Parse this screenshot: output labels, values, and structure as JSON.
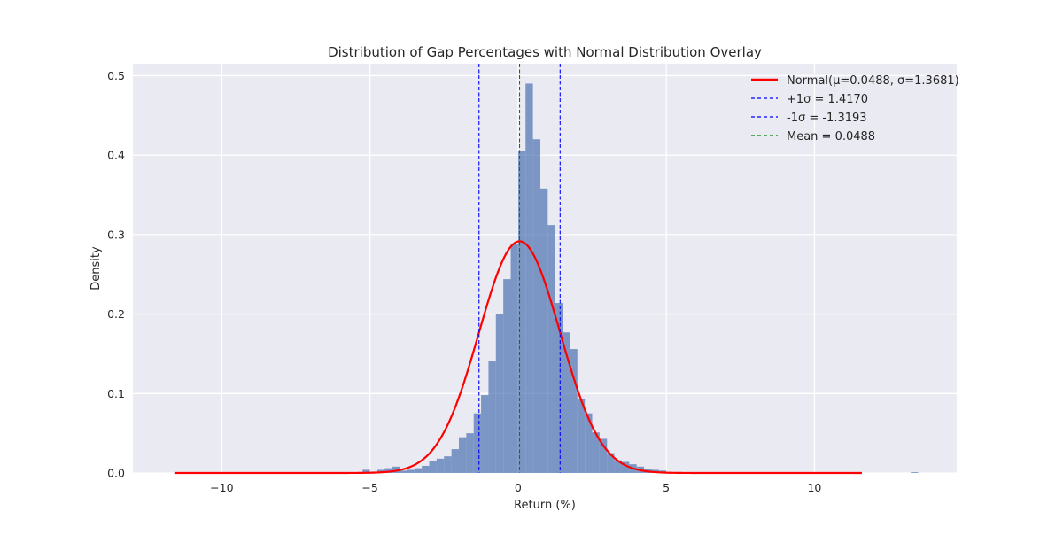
{
  "chart_data": {
    "type": "bar",
    "title": "Distribution of Gap Percentages with Normal Distribution Overlay",
    "xlabel": "Return (%)",
    "ylabel": "Density",
    "xlim": [
      -13.0,
      14.8
    ],
    "ylim": [
      0.0,
      0.515
    ],
    "xticks": [
      -10,
      -5,
      0,
      5,
      10
    ],
    "xtick_labels": [
      "−10",
      "−5",
      "0",
      "5",
      "10"
    ],
    "yticks": [
      0.0,
      0.1,
      0.2,
      0.3,
      0.4,
      0.5
    ],
    "ytick_labels": [
      "0.0",
      "0.1",
      "0.2",
      "0.3",
      "0.4",
      "0.5"
    ],
    "grid": true,
    "legend_position": "top-right",
    "colors": {
      "background": "#eaeaf2",
      "grid": "#ffffff",
      "bars": "#4c72b0",
      "normal_curve": "#ff0000",
      "sigma_lines": "#0000ff",
      "mean_line": "#008000",
      "text": "#262626"
    },
    "histogram": {
      "name": "Gap percentage",
      "bin_width": 0.25,
      "bins": [
        {
          "x0": -8.25,
          "x1": -8.0,
          "density": 0.001
        },
        {
          "x0": -6.75,
          "x1": -6.5,
          "density": 0.001
        },
        {
          "x0": -6.0,
          "x1": -5.75,
          "density": 0.001
        },
        {
          "x0": -5.5,
          "x1": -5.25,
          "density": 0.001
        },
        {
          "x0": -5.25,
          "x1": -5.0,
          "density": 0.004
        },
        {
          "x0": -5.0,
          "x1": -4.75,
          "density": 0.001
        },
        {
          "x0": -4.75,
          "x1": -4.5,
          "density": 0.004
        },
        {
          "x0": -4.5,
          "x1": -4.25,
          "density": 0.006
        },
        {
          "x0": -4.25,
          "x1": -4.0,
          "density": 0.008
        },
        {
          "x0": -4.0,
          "x1": -3.75,
          "density": 0.003
        },
        {
          "x0": -3.75,
          "x1": -3.5,
          "density": 0.004
        },
        {
          "x0": -3.5,
          "x1": -3.25,
          "density": 0.006
        },
        {
          "x0": -3.25,
          "x1": -3.0,
          "density": 0.009
        },
        {
          "x0": -3.0,
          "x1": -2.75,
          "density": 0.015
        },
        {
          "x0": -2.75,
          "x1": -2.5,
          "density": 0.018
        },
        {
          "x0": -2.5,
          "x1": -2.25,
          "density": 0.021
        },
        {
          "x0": -2.25,
          "x1": -2.0,
          "density": 0.03
        },
        {
          "x0": -2.0,
          "x1": -1.75,
          "density": 0.045
        },
        {
          "x0": -1.75,
          "x1": -1.5,
          "density": 0.05
        },
        {
          "x0": -1.5,
          "x1": -1.25,
          "density": 0.075
        },
        {
          "x0": -1.25,
          "x1": -1.0,
          "density": 0.098
        },
        {
          "x0": -1.0,
          "x1": -0.75,
          "density": 0.141
        },
        {
          "x0": -0.75,
          "x1": -0.5,
          "density": 0.2
        },
        {
          "x0": -0.5,
          "x1": -0.25,
          "density": 0.244
        },
        {
          "x0": -0.25,
          "x1": 0.0,
          "density": 0.288
        },
        {
          "x0": 0.0,
          "x1": 0.25,
          "density": 0.405
        },
        {
          "x0": 0.25,
          "x1": 0.5,
          "density": 0.49
        },
        {
          "x0": 0.5,
          "x1": 0.75,
          "density": 0.42
        },
        {
          "x0": 0.75,
          "x1": 1.0,
          "density": 0.358
        },
        {
          "x0": 1.0,
          "x1": 1.25,
          "density": 0.312
        },
        {
          "x0": 1.25,
          "x1": 1.5,
          "density": 0.214
        },
        {
          "x0": 1.5,
          "x1": 1.75,
          "density": 0.177
        },
        {
          "x0": 1.75,
          "x1": 2.0,
          "density": 0.156
        },
        {
          "x0": 2.0,
          "x1": 2.25,
          "density": 0.093
        },
        {
          "x0": 2.25,
          "x1": 2.5,
          "density": 0.075
        },
        {
          "x0": 2.5,
          "x1": 2.75,
          "density": 0.051
        },
        {
          "x0": 2.75,
          "x1": 3.0,
          "density": 0.043
        },
        {
          "x0": 3.0,
          "x1": 3.25,
          "density": 0.025
        },
        {
          "x0": 3.25,
          "x1": 3.5,
          "density": 0.016
        },
        {
          "x0": 3.5,
          "x1": 3.75,
          "density": 0.014
        },
        {
          "x0": 3.75,
          "x1": 4.0,
          "density": 0.011
        },
        {
          "x0": 4.0,
          "x1": 4.25,
          "density": 0.008
        },
        {
          "x0": 4.25,
          "x1": 4.5,
          "density": 0.005
        },
        {
          "x0": 4.5,
          "x1": 4.75,
          "density": 0.004
        },
        {
          "x0": 4.75,
          "x1": 5.0,
          "density": 0.003
        },
        {
          "x0": 5.0,
          "x1": 5.25,
          "density": 0.001
        },
        {
          "x0": 5.5,
          "x1": 5.75,
          "density": 0.001
        },
        {
          "x0": 5.75,
          "x1": 6.0,
          "density": 0.001
        },
        {
          "x0": 13.25,
          "x1": 13.5,
          "density": 0.001
        }
      ]
    },
    "series": [
      {
        "name": "Normal(μ=0.0488, σ=1.3681)",
        "type": "line",
        "mu": 0.0488,
        "sigma": 1.3681,
        "x_range": [
          -11.6,
          11.6
        ],
        "label": "Normal(μ=0.0488, σ=1.3681)"
      },
      {
        "name": "+1σ",
        "type": "vline",
        "x": 1.417,
        "label": "+1σ = 1.4170"
      },
      {
        "name": "-1σ",
        "type": "vline",
        "x": -1.3193,
        "label": "-1σ = -1.3193"
      },
      {
        "name": "Mean",
        "type": "vline",
        "x": 0.0488,
        "label": "Mean = 0.0488"
      }
    ]
  }
}
